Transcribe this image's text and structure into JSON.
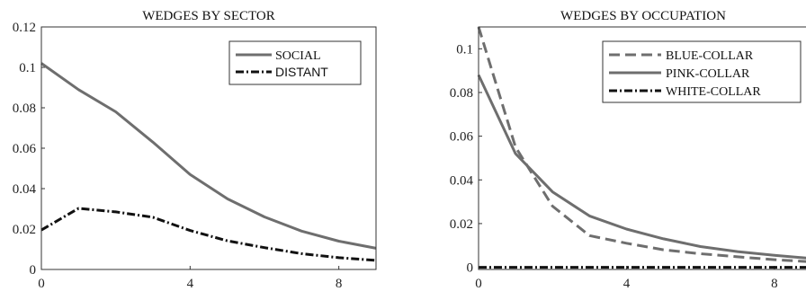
{
  "chart_data": [
    {
      "type": "line",
      "title": "WEDGES BY SECTOR",
      "xlabel": "",
      "ylabel": "",
      "xlim": [
        0,
        9
      ],
      "ylim": [
        0,
        0.12
      ],
      "xticks": [
        0,
        4,
        8
      ],
      "xtick_labels": [
        "0",
        "4",
        "8"
      ],
      "yticks": [
        0,
        0.02,
        0.04,
        0.06,
        0.08,
        0.1,
        0.12
      ],
      "ytick_labels": [
        "0",
        "0.02",
        "0.04",
        "0.06",
        "0.08",
        "0.1",
        "0.12"
      ],
      "grid": false,
      "legend_position": "top-right",
      "x": [
        0,
        1,
        2,
        3,
        4,
        5,
        6,
        7,
        8,
        9
      ],
      "series": [
        {
          "name": "SOCIAL",
          "style": "solid",
          "color": "#6e6e6e",
          "values": [
            0.102,
            0.089,
            0.078,
            0.063,
            0.047,
            0.035,
            0.026,
            0.019,
            0.014,
            0.0105
          ]
        },
        {
          "name": "DISTANT",
          "style": "dashdot",
          "color": "#111111",
          "values": [
            0.0195,
            0.0302,
            0.0285,
            0.0258,
            0.0193,
            0.0142,
            0.0108,
            0.0078,
            0.0058,
            0.0045
          ]
        }
      ]
    },
    {
      "type": "line",
      "title": "WEDGES BY OCCUPATION",
      "xlabel": "",
      "ylabel": "",
      "xlim": [
        0,
        9
      ],
      "ylim": [
        -0.001,
        0.11
      ],
      "xticks": [
        0,
        4,
        8
      ],
      "xtick_labels": [
        "0",
        "4",
        "8"
      ],
      "yticks": [
        0,
        0.02,
        0.04,
        0.06,
        0.08,
        0.1
      ],
      "ytick_labels": [
        "0",
        "0.02",
        "0.04",
        "0.06",
        "0.08",
        "0.1"
      ],
      "grid": false,
      "legend_position": "top-right",
      "x": [
        0,
        1,
        2,
        3,
        4,
        5,
        6,
        7,
        8,
        9
      ],
      "series": [
        {
          "name": "BLUE-COLLAR",
          "style": "dashed",
          "color": "#6e6e6e",
          "values": [
            0.11,
            0.055,
            0.028,
            0.0145,
            0.011,
            0.008,
            0.0062,
            0.0048,
            0.0035,
            0.0025
          ]
        },
        {
          "name": "PINK-COLLAR",
          "style": "solid",
          "color": "#6e6e6e",
          "values": [
            0.088,
            0.052,
            0.0345,
            0.0235,
            0.0175,
            0.013,
            0.0095,
            0.0072,
            0.0055,
            0.004
          ]
        },
        {
          "name": "WHITE-COLLAR",
          "style": "dashdot",
          "color": "#111111",
          "values": [
            0,
            0,
            0,
            0,
            0,
            0,
            0,
            0,
            0,
            0
          ]
        }
      ]
    }
  ]
}
